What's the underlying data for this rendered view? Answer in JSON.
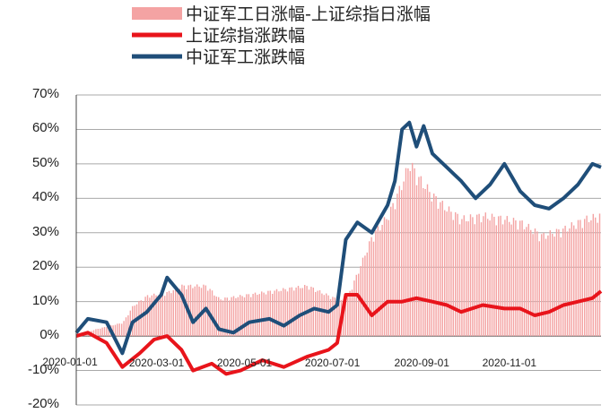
{
  "chart_data": {
    "type": "bar+line",
    "title": "",
    "xlabel": "",
    "ylabel": "",
    "ylim": [
      -20,
      70
    ],
    "yticks": [
      "70%",
      "60%",
      "50%",
      "40%",
      "30%",
      "20%",
      "10%",
      "0%",
      "-10%",
      "-20%"
    ],
    "x_range": [
      "2020-01-02",
      "2020-12-31"
    ],
    "xticks": [
      "2020-01-01",
      "2020-03-01",
      "2020-05-01",
      "2020-07-01",
      "2020-09-01",
      "2020-11-01"
    ],
    "grid": true,
    "legend_position": "top",
    "legend": [
      {
        "label": "中证军工日涨幅-上证综指日涨幅",
        "style": "bar",
        "color": "#f4a3a3"
      },
      {
        "label": "上证综指涨跌幅",
        "style": "line",
        "color": "#e8141b"
      },
      {
        "label": "中证军工涨跌幅",
        "style": "line",
        "color": "#1f4e79"
      }
    ],
    "series": [
      {
        "name": "中证军工日涨幅-上证综指日涨幅",
        "type": "bar",
        "points": [
          [
            "2020-01-02",
            0
          ],
          [
            "2020-01-15",
            2
          ],
          [
            "2020-02-03",
            4
          ],
          [
            "2020-02-10",
            9
          ],
          [
            "2020-02-20",
            12
          ],
          [
            "2020-03-05",
            13
          ],
          [
            "2020-03-15",
            15
          ],
          [
            "2020-04-01",
            15
          ],
          [
            "2020-04-10",
            11
          ],
          [
            "2020-04-25",
            12
          ],
          [
            "2020-05-10",
            13
          ],
          [
            "2020-05-25",
            14
          ],
          [
            "2020-06-10",
            15
          ],
          [
            "2020-06-25",
            12
          ],
          [
            "2020-07-06",
            10
          ],
          [
            "2020-07-14",
            18
          ],
          [
            "2020-07-25",
            30
          ],
          [
            "2020-08-05",
            36
          ],
          [
            "2020-08-14",
            45
          ],
          [
            "2020-08-20",
            52
          ],
          [
            "2020-08-25",
            48
          ],
          [
            "2020-09-05",
            42
          ],
          [
            "2020-09-15",
            38
          ],
          [
            "2020-09-25",
            35
          ],
          [
            "2020-10-10",
            36
          ],
          [
            "2020-10-25",
            35
          ],
          [
            "2020-11-05",
            34
          ],
          [
            "2020-11-20",
            30
          ],
          [
            "2020-12-05",
            32
          ],
          [
            "2020-12-20",
            35
          ],
          [
            "2020-12-31",
            36
          ]
        ]
      },
      {
        "name": "上证综指涨跌幅",
        "type": "line",
        "points": [
          [
            "2020-01-02",
            0
          ],
          [
            "2020-01-10",
            1
          ],
          [
            "2020-01-23",
            -2
          ],
          [
            "2020-02-03",
            -9
          ],
          [
            "2020-02-15",
            -5
          ],
          [
            "2020-02-25",
            -1
          ],
          [
            "2020-03-05",
            0
          ],
          [
            "2020-03-15",
            -4
          ],
          [
            "2020-03-23",
            -10
          ],
          [
            "2020-04-05",
            -8
          ],
          [
            "2020-04-15",
            -11
          ],
          [
            "2020-04-25",
            -10
          ],
          [
            "2020-05-10",
            -7
          ],
          [
            "2020-05-25",
            -9
          ],
          [
            "2020-06-10",
            -6
          ],
          [
            "2020-06-25",
            -4
          ],
          [
            "2020-07-01",
            -2
          ],
          [
            "2020-07-07",
            12
          ],
          [
            "2020-07-15",
            12
          ],
          [
            "2020-07-25",
            6
          ],
          [
            "2020-08-05",
            10
          ],
          [
            "2020-08-15",
            10
          ],
          [
            "2020-08-25",
            11
          ],
          [
            "2020-09-05",
            10
          ],
          [
            "2020-09-15",
            9
          ],
          [
            "2020-09-25",
            7
          ],
          [
            "2020-10-10",
            9
          ],
          [
            "2020-10-25",
            8
          ],
          [
            "2020-11-05",
            8
          ],
          [
            "2020-11-15",
            6
          ],
          [
            "2020-11-25",
            7
          ],
          [
            "2020-12-05",
            9
          ],
          [
            "2020-12-15",
            10
          ],
          [
            "2020-12-25",
            11
          ],
          [
            "2020-12-31",
            13
          ]
        ]
      },
      {
        "name": "中证军工涨跌幅",
        "type": "line",
        "points": [
          [
            "2020-01-02",
            1
          ],
          [
            "2020-01-10",
            5
          ],
          [
            "2020-01-23",
            4
          ],
          [
            "2020-02-03",
            -5
          ],
          [
            "2020-02-10",
            4
          ],
          [
            "2020-02-20",
            7
          ],
          [
            "2020-03-01",
            12
          ],
          [
            "2020-03-05",
            17
          ],
          [
            "2020-03-15",
            12
          ],
          [
            "2020-03-23",
            4
          ],
          [
            "2020-04-01",
            8
          ],
          [
            "2020-04-10",
            2
          ],
          [
            "2020-04-20",
            1
          ],
          [
            "2020-05-01",
            4
          ],
          [
            "2020-05-15",
            5
          ],
          [
            "2020-05-25",
            3
          ],
          [
            "2020-06-05",
            6
          ],
          [
            "2020-06-15",
            8
          ],
          [
            "2020-06-25",
            7
          ],
          [
            "2020-07-01",
            9
          ],
          [
            "2020-07-07",
            28
          ],
          [
            "2020-07-15",
            33
          ],
          [
            "2020-07-25",
            30
          ],
          [
            "2020-08-05",
            38
          ],
          [
            "2020-08-10",
            45
          ],
          [
            "2020-08-15",
            60
          ],
          [
            "2020-08-20",
            62
          ],
          [
            "2020-08-25",
            55
          ],
          [
            "2020-08-30",
            61
          ],
          [
            "2020-09-05",
            53
          ],
          [
            "2020-09-15",
            49
          ],
          [
            "2020-09-25",
            45
          ],
          [
            "2020-10-05",
            40
          ],
          [
            "2020-10-15",
            44
          ],
          [
            "2020-10-25",
            50
          ],
          [
            "2020-11-05",
            42
          ],
          [
            "2020-11-15",
            38
          ],
          [
            "2020-11-25",
            37
          ],
          [
            "2020-12-05",
            40
          ],
          [
            "2020-12-15",
            44
          ],
          [
            "2020-12-25",
            50
          ],
          [
            "2020-12-31",
            49
          ]
        ]
      }
    ]
  }
}
